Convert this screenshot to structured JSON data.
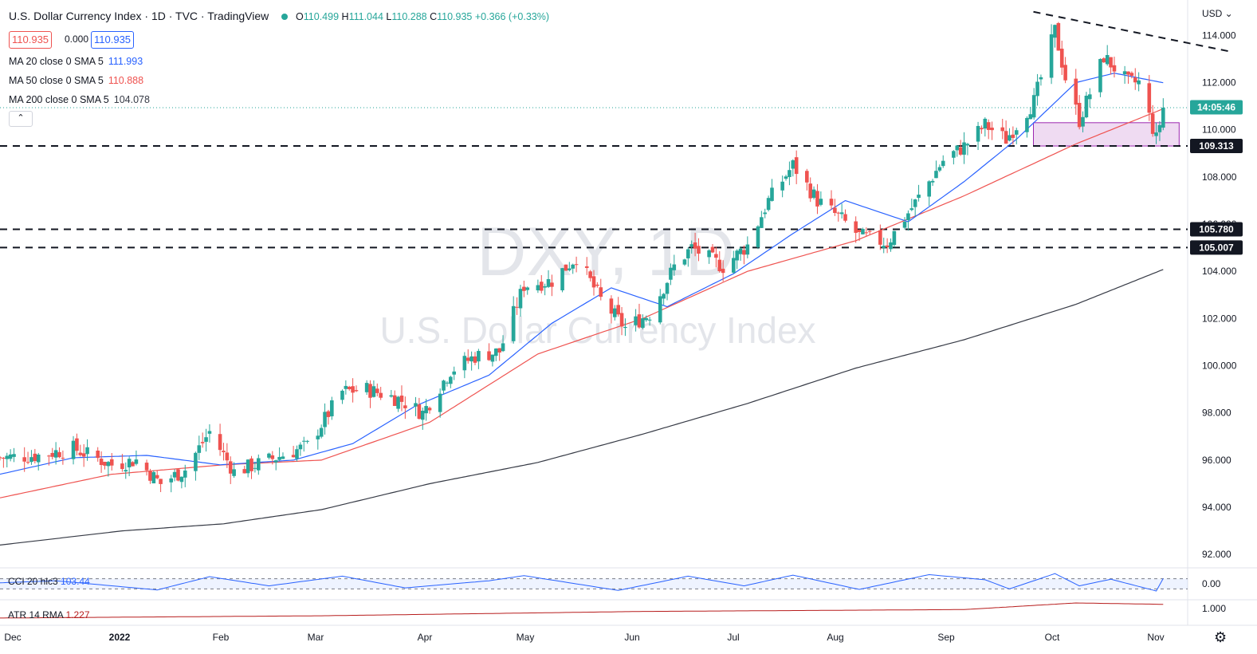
{
  "header": {
    "symbol": "U.S. Dollar Currency Index · 1D · TVC · TradingView",
    "ohlc_o_label": "O",
    "ohlc_o": "110.499",
    "ohlc_h_label": "H",
    "ohlc_h": "111.044",
    "ohlc_l_label": "L",
    "ohlc_l": "110.288",
    "ohlc_c_label": "C",
    "ohlc_c": "110.935",
    "change": "+0.366 (+0.33%)",
    "bid": "110.935",
    "spread": "0.000",
    "ask": "110.935"
  },
  "indicators": {
    "ma20_label": "MA 20 close 0 SMA 5",
    "ma20_value": "111.993",
    "ma50_label": "MA 50 close 0 SMA 5",
    "ma50_value": "110.888",
    "ma200_label": "MA 200 close 0 SMA 5",
    "ma200_value": "104.078",
    "cci_label": "CCI 20 hlc3",
    "cci_value": "103.44",
    "atr_label": "ATR 14 RMA",
    "atr_value": "1.227",
    "collapse_icon": "chevron-up-icon"
  },
  "watermark": {
    "line1": "DXY, 1D",
    "line2": "U.S. Dollar Currency Index"
  },
  "colors": {
    "up": "#26a69a",
    "down": "#ef5350",
    "ma20": "#2962ff",
    "ma50": "#ef5350",
    "ma200": "#363a45",
    "cci": "#2962ff",
    "atr": "#b71c1c",
    "zone": "#e1bee7"
  },
  "chart_data": {
    "type": "candlestick",
    "currency": "USD",
    "y_ticks": [
      "114.000",
      "112.000",
      "110.000",
      "108.000",
      "106.000",
      "104.000",
      "102.000",
      "100.000",
      "98.000",
      "96.000",
      "94.000",
      "92.000"
    ],
    "ylim": [
      91.5,
      115.5
    ],
    "x_ticks": [
      "Dec",
      "2022",
      "Jan",
      "Feb",
      "Mar",
      "Apr",
      "May",
      "Jun",
      "Jul",
      "Aug",
      "Sep",
      "Oct",
      "Nov"
    ],
    "x_range": [
      "2021-11-29",
      "2022-11-04"
    ],
    "last_price": "110.935",
    "countdown": "14:05:46",
    "horizontal_levels": [
      {
        "value": 109.313,
        "label": "109.313"
      },
      {
        "value": 105.78,
        "label": "105.780"
      },
      {
        "value": 105.007,
        "label": "105.007"
      }
    ],
    "trendline": [
      {
        "date": "2022-09-14",
        "value": 115.0
      },
      {
        "date": "2022-11-03",
        "value": 113.3
      }
    ],
    "zone": {
      "from": "2022-09-14",
      "to": "2022-10-28",
      "low": 109.313,
      "high": 110.3
    },
    "close_path": [
      [
        "2021-11-29",
        96.1
      ],
      [
        "2021-12-10",
        96.2
      ],
      [
        "2021-12-20",
        96.5
      ],
      [
        "2021-12-31",
        95.8
      ],
      [
        "2022-01-07",
        96.0
      ],
      [
        "2022-01-14",
        95.0
      ],
      [
        "2022-01-21",
        95.6
      ],
      [
        "2022-01-28",
        97.2
      ],
      [
        "2022-02-04",
        95.5
      ],
      [
        "2022-02-14",
        96.0
      ],
      [
        "2022-02-25",
        96.6
      ],
      [
        "2022-03-07",
        98.9
      ],
      [
        "2022-03-14",
        99.0
      ],
      [
        "2022-03-23",
        98.6
      ],
      [
        "2022-03-30",
        98.0
      ],
      [
        "2022-04-07",
        99.8
      ],
      [
        "2022-04-14",
        100.4
      ],
      [
        "2022-04-21",
        100.6
      ],
      [
        "2022-04-28",
        103.4
      ],
      [
        "2022-05-06",
        103.6
      ],
      [
        "2022-05-13",
        104.6
      ],
      [
        "2022-05-20",
        102.8
      ],
      [
        "2022-05-27",
        101.6
      ],
      [
        "2022-06-03",
        102.2
      ],
      [
        "2022-06-10",
        104.2
      ],
      [
        "2022-06-15",
        105.0
      ],
      [
        "2022-06-24",
        104.2
      ],
      [
        "2022-07-01",
        105.1
      ],
      [
        "2022-07-07",
        107.0
      ],
      [
        "2022-07-14",
        108.5
      ],
      [
        "2022-07-21",
        107.0
      ],
      [
        "2022-07-28",
        106.2
      ],
      [
        "2022-08-02",
        105.5
      ],
      [
        "2022-08-10",
        105.2
      ],
      [
        "2022-08-18",
        106.9
      ],
      [
        "2022-08-26",
        108.7
      ],
      [
        "2022-09-01",
        109.3
      ],
      [
        "2022-09-07",
        110.2
      ],
      [
        "2022-09-13",
        109.6
      ],
      [
        "2022-09-21",
        111.2
      ],
      [
        "2022-09-27",
        114.2
      ],
      [
        "2022-09-30",
        112.2
      ],
      [
        "2022-10-04",
        110.4
      ],
      [
        "2022-10-11",
        113.1
      ],
      [
        "2022-10-18",
        112.0
      ],
      [
        "2022-10-21",
        112.0
      ],
      [
        "2022-10-26",
        109.6
      ],
      [
        "2022-10-28",
        110.935
      ]
    ],
    "ma20_path": [
      [
        "2021-11-29",
        95.4
      ],
      [
        "2021-12-20",
        96.1
      ],
      [
        "2022-01-10",
        96.2
      ],
      [
        "2022-01-31",
        95.8
      ],
      [
        "2022-02-21",
        96.0
      ],
      [
        "2022-03-10",
        96.7
      ],
      [
        "2022-03-28",
        98.3
      ],
      [
        "2022-04-18",
        99.6
      ],
      [
        "2022-05-06",
        101.8
      ],
      [
        "2022-05-23",
        103.3
      ],
      [
        "2022-06-08",
        102.5
      ],
      [
        "2022-06-27",
        103.9
      ],
      [
        "2022-07-14",
        105.6
      ],
      [
        "2022-07-29",
        107.0
      ],
      [
        "2022-08-16",
        106.1
      ],
      [
        "2022-09-01",
        107.8
      ],
      [
        "2022-09-16",
        109.6
      ],
      [
        "2022-10-03",
        112.0
      ],
      [
        "2022-10-14",
        112.4
      ],
      [
        "2022-10-28",
        111.993
      ]
    ],
    "ma50_path": [
      [
        "2021-11-29",
        94.4
      ],
      [
        "2021-12-31",
        95.4
      ],
      [
        "2022-02-01",
        95.8
      ],
      [
        "2022-03-01",
        96.0
      ],
      [
        "2022-04-01",
        97.6
      ],
      [
        "2022-05-02",
        100.5
      ],
      [
        "2022-06-01",
        102.0
      ],
      [
        "2022-07-01",
        104.0
      ],
      [
        "2022-08-01",
        105.3
      ],
      [
        "2022-09-01",
        107.2
      ],
      [
        "2022-10-03",
        109.4
      ],
      [
        "2022-10-28",
        110.888
      ]
    ],
    "ma200_path": [
      [
        "2021-11-29",
        92.4
      ],
      [
        "2022-01-03",
        93.0
      ],
      [
        "2022-02-01",
        93.3
      ],
      [
        "2022-03-01",
        93.9
      ],
      [
        "2022-04-01",
        95.0
      ],
      [
        "2022-05-02",
        95.9
      ],
      [
        "2022-06-01",
        97.1
      ],
      [
        "2022-07-01",
        98.4
      ],
      [
        "2022-08-01",
        99.9
      ],
      [
        "2022-09-01",
        101.1
      ],
      [
        "2022-10-03",
        102.6
      ],
      [
        "2022-10-28",
        104.078
      ]
    ],
    "cci_path": [
      [
        "2021-11-29",
        20
      ],
      [
        "2021-12-15",
        60
      ],
      [
        "2022-01-13",
        -120
      ],
      [
        "2022-01-28",
        140
      ],
      [
        "2022-02-14",
        -40
      ],
      [
        "2022-03-07",
        150
      ],
      [
        "2022-03-25",
        -80
      ],
      [
        "2022-04-18",
        60
      ],
      [
        "2022-04-28",
        160
      ],
      [
        "2022-05-25",
        -130
      ],
      [
        "2022-06-14",
        150
      ],
      [
        "2022-06-30",
        -40
      ],
      [
        "2022-07-14",
        170
      ],
      [
        "2022-08-02",
        -110
      ],
      [
        "2022-08-22",
        180
      ],
      [
        "2022-09-07",
        80
      ],
      [
        "2022-09-14",
        -100
      ],
      [
        "2022-09-27",
        200
      ],
      [
        "2022-10-04",
        -40
      ],
      [
        "2022-10-13",
        90
      ],
      [
        "2022-10-26",
        -140
      ],
      [
        "2022-10-28",
        103.44
      ]
    ],
    "cci_levels": [
      100,
      -100
    ],
    "cci_ylim": [
      -250,
      250
    ],
    "atr_ticks": [
      "0.00",
      "1.000"
    ],
    "atr_path": [
      [
        "2021-11-29",
        0.5
      ],
      [
        "2022-03-01",
        0.62
      ],
      [
        "2022-06-01",
        0.85
      ],
      [
        "2022-09-01",
        0.95
      ],
      [
        "2022-10-03",
        1.3
      ],
      [
        "2022-10-28",
        1.227
      ]
    ],
    "atr_ylim": [
      0.2,
      1.3
    ]
  }
}
